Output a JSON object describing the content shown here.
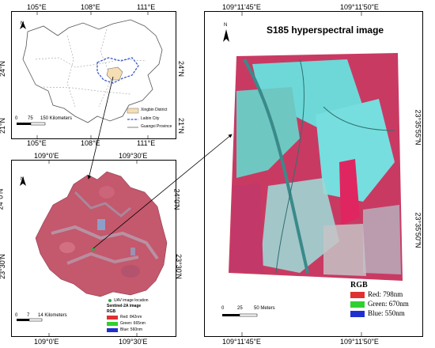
{
  "top_left_map": {
    "lon_ticks": [
      "105°E",
      "108°E",
      "111°E"
    ],
    "lat_ticks": [
      "24°N",
      "21°N"
    ],
    "north": "N",
    "scale_labels": [
      "0",
      "75",
      "150 Kilometers"
    ],
    "legend": [
      {
        "label": "Xingbin District",
        "color": "#f5deb3"
      },
      {
        "label": "Laibin City",
        "color": "#3a5bc7"
      },
      {
        "label": "Guangxi Province",
        "color": "#808080"
      }
    ]
  },
  "bottom_left_map": {
    "lon_ticks": [
      "109°0'E",
      "109°30'E"
    ],
    "lat_ticks": [
      "24°0'N",
      "23°30'N"
    ],
    "north": "N",
    "scale_labels": [
      "0",
      "7",
      "14 Kilometers"
    ],
    "legend_title_1": "UAV image location",
    "legend_title_2": "Sentinel-2A image",
    "legend_title_3": "RGB",
    "bands": [
      {
        "label": "Red: 842nm",
        "color": "#e03030"
      },
      {
        "label": "Green: 665nm",
        "color": "#30d030"
      },
      {
        "label": "Blue: 560nm",
        "color": "#2030d0"
      }
    ]
  },
  "right_map": {
    "title": "S185 hyperspectral image",
    "lon_ticks": [
      "109°11'45\"E",
      "109°11'50\"E"
    ],
    "lat_ticks": [
      "23°35'55\"N",
      "23°35'50\"N"
    ],
    "north": "N",
    "scale_labels": [
      "0",
      "25",
      "50 Meters"
    ],
    "legend_title": "RGB",
    "bands": [
      {
        "label": "Red:  798nm",
        "color": "#e03030"
      },
      {
        "label": "Green:  670nm",
        "color": "#30d030"
      },
      {
        "label": "Blue:  550nm",
        "color": "#2030d0"
      }
    ]
  }
}
